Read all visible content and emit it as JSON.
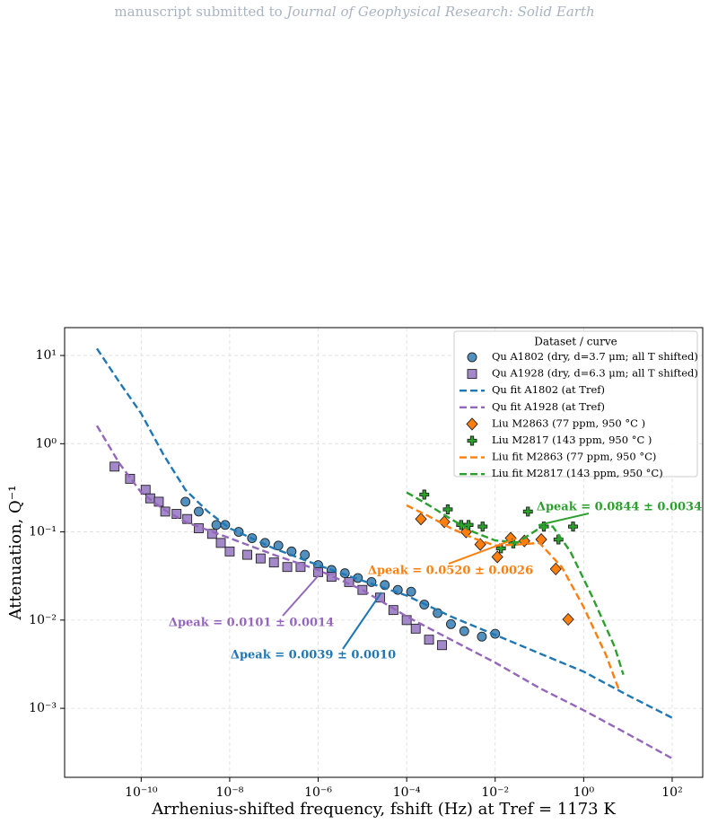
{
  "header": {
    "prefix": "manuscript submitted to",
    "journal": "Journal of Geophysical Research: Solid Earth"
  },
  "chart_data": {
    "type": "scatter",
    "xlabel": "Arrhenius-shifted frequency, fshift (Hz) at Tref = 1173 K",
    "ylabel": "Attenuation, Q⁻¹",
    "xscale": "log",
    "yscale": "log",
    "grid": true,
    "xlim": [
      1.86e-12,
      490
    ],
    "ylim": [
      0.000165,
      20.7
    ],
    "xticks": [
      {
        "value": 1e-10,
        "label": "10⁻¹⁰"
      },
      {
        "value": 1e-08,
        "label": "10⁻⁸"
      },
      {
        "value": 1e-06,
        "label": "10⁻⁶"
      },
      {
        "value": 0.0001,
        "label": "10⁻⁴"
      },
      {
        "value": 0.01,
        "label": "10⁻²"
      },
      {
        "value": 1,
        "label": "10⁰"
      },
      {
        "value": 100,
        "label": "10²"
      }
    ],
    "yticks": [
      {
        "value": 10,
        "label": "10¹"
      },
      {
        "value": 1,
        "label": "10⁰"
      },
      {
        "value": 0.1,
        "label": "10⁻¹"
      },
      {
        "value": 0.01,
        "label": "10⁻²"
      },
      {
        "value": 0.001,
        "label": "10⁻³"
      }
    ],
    "legend_title": "Dataset / curve",
    "legend_position": "upper right",
    "series": [
      {
        "name": "Qu A1802 (dry, d=3.7 μm; all T shifted)",
        "kind": "scatter",
        "marker": "circle",
        "color": "#3f84b8",
        "x": [
          1e-09,
          2e-09,
          5e-09,
          7.9e-09,
          1.6e-08,
          3.2e-08,
          6.3e-08,
          1.26e-07,
          2.5e-07,
          5e-07,
          1e-06,
          2e-06,
          4e-06,
          7.9e-06,
          1.6e-05,
          3.2e-05,
          6.3e-05,
          0.000126,
          0.00025,
          0.0005,
          0.001,
          0.002,
          0.005,
          0.01
        ],
        "values": [
          0.22,
          0.17,
          0.12,
          0.12,
          0.1,
          0.085,
          0.075,
          0.07,
          0.06,
          0.055,
          0.042,
          0.037,
          0.034,
          0.03,
          0.027,
          0.025,
          0.022,
          0.021,
          0.015,
          0.012,
          0.009,
          0.0075,
          0.0065,
          0.007
        ]
      },
      {
        "name": "Qu A1928 (dry, d=6.3 μm; all T shifted)",
        "kind": "scatter",
        "marker": "square",
        "color": "#9a7cc4",
        "x": [
          2.5e-11,
          5.6e-11,
          1.26e-10,
          1.6e-10,
          2.5e-10,
          3.5e-10,
          6.3e-10,
          1.1e-09,
          2e-09,
          4e-09,
          6.3e-09,
          1e-08,
          2.5e-08,
          5e-08,
          1e-07,
          2e-07,
          4e-07,
          1e-06,
          2e-06,
          5e-06,
          1e-05,
          2.5e-05,
          5e-05,
          0.0001,
          0.00016,
          0.00032,
          0.00063
        ],
        "values": [
          0.55,
          0.4,
          0.3,
          0.24,
          0.22,
          0.17,
          0.16,
          0.14,
          0.11,
          0.095,
          0.075,
          0.06,
          0.055,
          0.05,
          0.045,
          0.04,
          0.04,
          0.035,
          0.031,
          0.027,
          0.022,
          0.018,
          0.013,
          0.01,
          0.008,
          0.006,
          0.0052
        ]
      },
      {
        "name": "Qu fit A1802 (at Tref)",
        "kind": "line",
        "color": "#1f77b4",
        "x": [
          1e-11,
          3.2e-11,
          1e-10,
          3.2e-10,
          1e-09,
          3.2e-09,
          1e-08,
          1e-07,
          1e-06,
          1e-05,
          0.0001,
          0.001,
          0.01,
          0.1,
          1,
          10,
          100
        ],
        "values": [
          12,
          5,
          2.2,
          0.75,
          0.3,
          0.17,
          0.11,
          0.065,
          0.042,
          0.028,
          0.019,
          0.011,
          0.0068,
          0.0042,
          0.0026,
          0.0014,
          0.00078
        ]
      },
      {
        "name": "Qu fit A1928 (at Tref)",
        "kind": "line",
        "color": "#9467bd",
        "x": [
          1e-11,
          3.2e-11,
          1e-10,
          3.2e-10,
          1e-09,
          1e-08,
          1e-07,
          1e-06,
          1e-05,
          0.0001,
          0.001,
          0.01,
          0.1,
          1,
          10,
          100
        ],
        "values": [
          1.6,
          0.6,
          0.28,
          0.18,
          0.13,
          0.085,
          0.055,
          0.037,
          0.022,
          0.011,
          0.006,
          0.0033,
          0.0017,
          0.00095,
          0.00051,
          0.00027
        ]
      },
      {
        "name": "Liu M2863 (77 ppm, 950 °C )",
        "kind": "scatter",
        "marker": "diamond",
        "color": "#ff7f0e",
        "x": [
          0.00021,
          0.00071,
          0.0022,
          0.0046,
          0.0112,
          0.0224,
          0.0457,
          0.11,
          0.234,
          0.447
        ],
        "values": [
          0.14,
          0.13,
          0.1,
          0.072,
          0.052,
          0.085,
          0.079,
          0.082,
          0.038,
          0.0102
        ]
      },
      {
        "name": "Liu M2817 (143 ppm, 950 °C )",
        "kind": "scatter",
        "marker": "plus",
        "color": "#2ca02c",
        "x": [
          0.00025,
          0.00085,
          0.0017,
          0.0025,
          0.0052,
          0.0135,
          0.0257,
          0.055,
          0.126,
          0.269,
          0.575
        ],
        "values": [
          0.265,
          0.18,
          0.12,
          0.12,
          0.115,
          0.065,
          0.074,
          0.17,
          0.115,
          0.082,
          0.115
        ]
      },
      {
        "name": "Liu fit M2863 (77 ppm, 950 °C)",
        "kind": "line",
        "color": "#ff7f0e",
        "x": [
          0.0001,
          0.00032,
          0.001,
          0.0032,
          0.01,
          0.032,
          0.1,
          0.32,
          1,
          3.2,
          6.3
        ],
        "values": [
          0.2,
          0.15,
          0.11,
          0.085,
          0.07,
          0.072,
          0.075,
          0.04,
          0.014,
          0.004,
          0.0016
        ]
      },
      {
        "name": "Liu fit M2817 (143 ppm, 950 °C)",
        "kind": "line",
        "color": "#2ca02c",
        "x": [
          0.0001,
          0.00032,
          0.001,
          0.0032,
          0.01,
          0.032,
          0.1,
          0.2,
          0.5,
          1.6,
          5,
          7.9
        ],
        "values": [
          0.28,
          0.2,
          0.14,
          0.1,
          0.08,
          0.076,
          0.11,
          0.115,
          0.06,
          0.018,
          0.005,
          0.0024
        ]
      }
    ],
    "annotations": [
      {
        "text": "Δpeak = 0.0101 ± 0.0014",
        "color": "#9467bd"
      },
      {
        "text": "Δpeak = 0.0039 ± 0.0010",
        "color": "#1f77b4"
      },
      {
        "text": "Δpeak = 0.0520 ± 0.0026",
        "color": "#ff7f0e"
      },
      {
        "text": "Δpeak = 0.0844 ± 0.0034",
        "color": "#2ca02c"
      }
    ]
  }
}
